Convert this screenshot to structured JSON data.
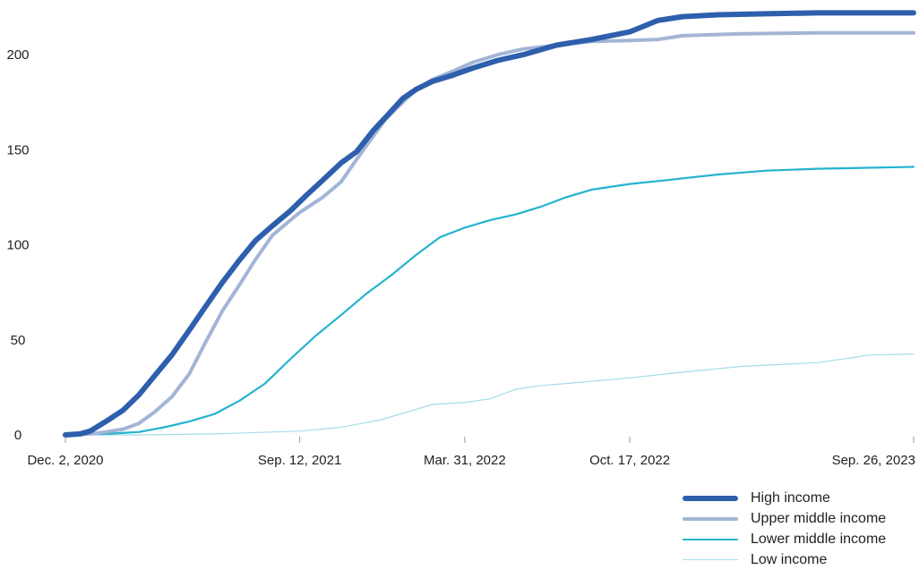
{
  "chart_data": {
    "type": "line",
    "title": "",
    "xlabel": "",
    "ylabel": "",
    "ylim": [
      0,
      225
    ],
    "yticks": [
      "0",
      "50",
      "100",
      "150",
      "200"
    ],
    "xticks": [
      {
        "date": "2020-12-02",
        "label": "Dec. 2, 2020"
      },
      {
        "date": "2021-09-12",
        "label": "Sep. 12, 2021"
      },
      {
        "date": "2022-03-31",
        "label": "Mar. 31, 2022"
      },
      {
        "date": "2022-10-17",
        "label": "Oct. 17, 2022"
      },
      {
        "date": "2023-09-26",
        "label": "Sep. 26, 2023"
      }
    ],
    "xlim": [
      "2020-12-02",
      "2023-09-26"
    ],
    "grid": false,
    "legend_position": "bottom-right",
    "series": [
      {
        "name": "High income",
        "color": "#2e5fac",
        "width": 6,
        "x": [
          "2020-12-02",
          "2020-12-20",
          "2021-01-01",
          "2021-01-20",
          "2021-02-10",
          "2021-03-01",
          "2021-03-20",
          "2021-04-10",
          "2021-05-01",
          "2021-05-20",
          "2021-06-10",
          "2021-07-01",
          "2021-07-20",
          "2021-08-10",
          "2021-09-01",
          "2021-09-20",
          "2021-10-10",
          "2021-11-01",
          "2021-11-20",
          "2021-12-10",
          "2021-12-25",
          "2022-01-15",
          "2022-02-01",
          "2022-02-20",
          "2022-03-15",
          "2022-04-10",
          "2022-05-10",
          "2022-06-10",
          "2022-07-20",
          "2022-09-01",
          "2022-10-17",
          "2022-11-20",
          "2022-12-20",
          "2023-02-01",
          "2023-04-01",
          "2023-06-01",
          "2023-08-01",
          "2023-09-26"
        ],
        "y": [
          0,
          0.5,
          2,
          7,
          13,
          21,
          31,
          42,
          55,
          67,
          80,
          92,
          102,
          110,
          118,
          126,
          134,
          143,
          149,
          160,
          167,
          177,
          182,
          186,
          189,
          193,
          197,
          200,
          205,
          208,
          212,
          218,
          220,
          221,
          221.5,
          222,
          222,
          222
        ]
      },
      {
        "name": "Upper middle income",
        "color": "#a3b5d6",
        "width": 4,
        "x": [
          "2020-12-02",
          "2021-01-01",
          "2021-01-20",
          "2021-02-10",
          "2021-03-01",
          "2021-03-20",
          "2021-04-10",
          "2021-05-01",
          "2021-05-20",
          "2021-06-10",
          "2021-07-01",
          "2021-07-20",
          "2021-08-10",
          "2021-09-01",
          "2021-09-12",
          "2021-10-10",
          "2021-11-01",
          "2021-11-20",
          "2021-12-10",
          "2021-12-25",
          "2022-01-15",
          "2022-02-01",
          "2022-02-20",
          "2022-03-15",
          "2022-04-10",
          "2022-05-10",
          "2022-06-10",
          "2022-07-20",
          "2022-09-01",
          "2022-10-17",
          "2022-11-20",
          "2022-12-20",
          "2023-03-01",
          "2023-06-01",
          "2023-09-26"
        ],
        "y": [
          0,
          0.5,
          1.5,
          3,
          6,
          12,
          20,
          32,
          48,
          65,
          79,
          92,
          105,
          113,
          117,
          125,
          133,
          145,
          157,
          166,
          175,
          182,
          187,
          191,
          196,
          200,
          203,
          205,
          207,
          207.5,
          208,
          210,
          211,
          211.5,
          211.5
        ]
      },
      {
        "name": "Lower middle income",
        "color": "#24b3d0",
        "width": 2.2,
        "x": [
          "2020-12-02",
          "2021-01-20",
          "2021-03-01",
          "2021-04-01",
          "2021-05-01",
          "2021-06-01",
          "2021-07-01",
          "2021-08-01",
          "2021-09-01",
          "2021-10-01",
          "2021-11-01",
          "2021-12-01",
          "2022-01-01",
          "2022-02-01",
          "2022-03-01",
          "2022-03-31",
          "2022-05-01",
          "2022-06-01",
          "2022-07-01",
          "2022-08-01",
          "2022-09-01",
          "2022-10-17",
          "2022-12-01",
          "2023-02-01",
          "2023-04-01",
          "2023-06-01",
          "2023-08-01",
          "2023-09-26"
        ],
        "y": [
          0,
          0.5,
          1.5,
          4,
          7,
          11,
          18,
          27,
          40,
          52,
          63,
          74,
          84,
          95,
          104,
          109,
          113,
          116,
          120,
          125,
          129,
          132,
          134,
          137,
          139,
          140,
          140.5,
          141
        ]
      },
      {
        "name": "Low income",
        "color": "#a7dce9",
        "width": 1.2,
        "x": [
          "2020-12-02",
          "2021-03-01",
          "2021-06-01",
          "2021-09-12",
          "2021-11-01",
          "2021-12-20",
          "2022-01-20",
          "2022-02-20",
          "2022-03-31",
          "2022-05-01",
          "2022-06-01",
          "2022-07-01",
          "2022-08-01",
          "2022-10-17",
          "2022-12-20",
          "2023-03-01",
          "2023-06-01",
          "2023-07-20",
          "2023-08-01",
          "2023-09-26"
        ],
        "y": [
          0,
          0,
          0.5,
          2,
          4,
          8,
          12,
          16,
          17,
          19,
          24,
          26,
          27,
          30,
          33,
          36,
          38,
          41,
          42,
          42.5
        ]
      }
    ]
  }
}
